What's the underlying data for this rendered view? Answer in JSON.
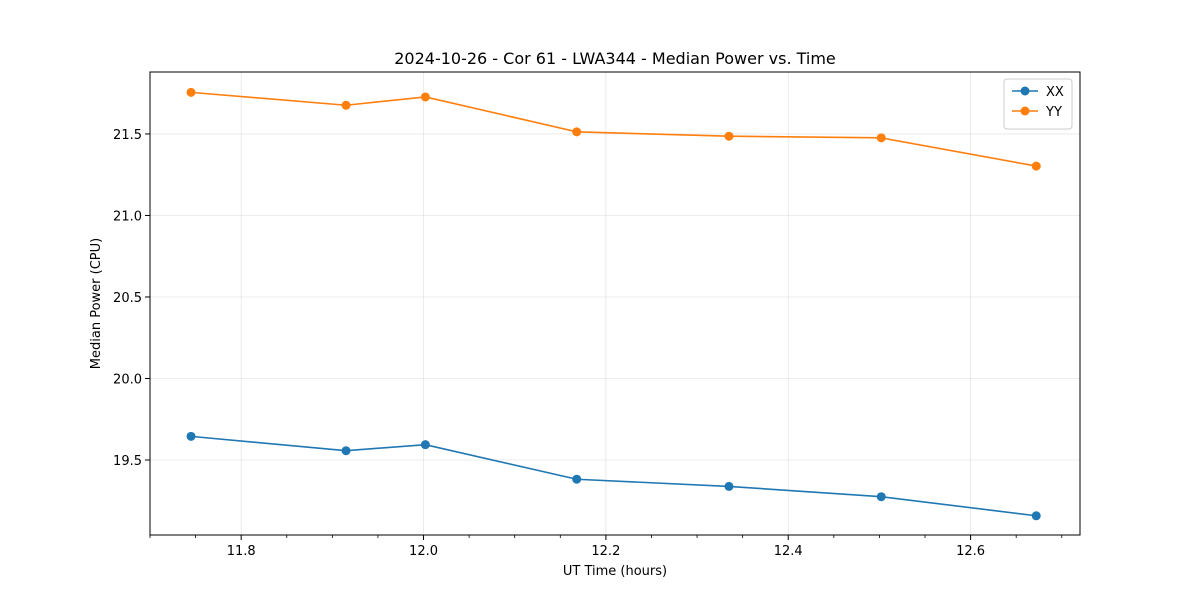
{
  "chart_data": {
    "type": "line",
    "title": "2024-10-26 - Cor 61 - LWA344 - Median Power vs. Time",
    "xlabel": "UT Time (hours)",
    "ylabel": "Median Power (CPU)",
    "xlim": [
      11.7,
      12.72
    ],
    "ylim": [
      19.04,
      21.88
    ],
    "grid": true,
    "legend_position": "top-right",
    "x": [
      11.745,
      11.915,
      12.002,
      12.168,
      12.335,
      12.502,
      12.672
    ],
    "xticks": [
      11.8,
      12.0,
      12.2,
      12.4,
      12.6
    ],
    "xtick_labels": [
      "11.8",
      "12.0",
      "12.2",
      "12.4",
      "12.6"
    ],
    "xminor_step": 0.05,
    "yticks": [
      19.5,
      20.0,
      20.5,
      21.0,
      21.5
    ],
    "ytick_labels": [
      "19.5",
      "20.0",
      "20.5",
      "21.0",
      "21.5"
    ],
    "series": [
      {
        "name": "XX",
        "color": "#1f77b4",
        "values": [
          19.645,
          19.557,
          19.594,
          19.382,
          19.338,
          19.275,
          19.158
        ]
      },
      {
        "name": "YY",
        "color": "#ff7f0e",
        "values": [
          21.755,
          21.676,
          21.727,
          21.513,
          21.486,
          21.476,
          21.303
        ]
      }
    ]
  }
}
